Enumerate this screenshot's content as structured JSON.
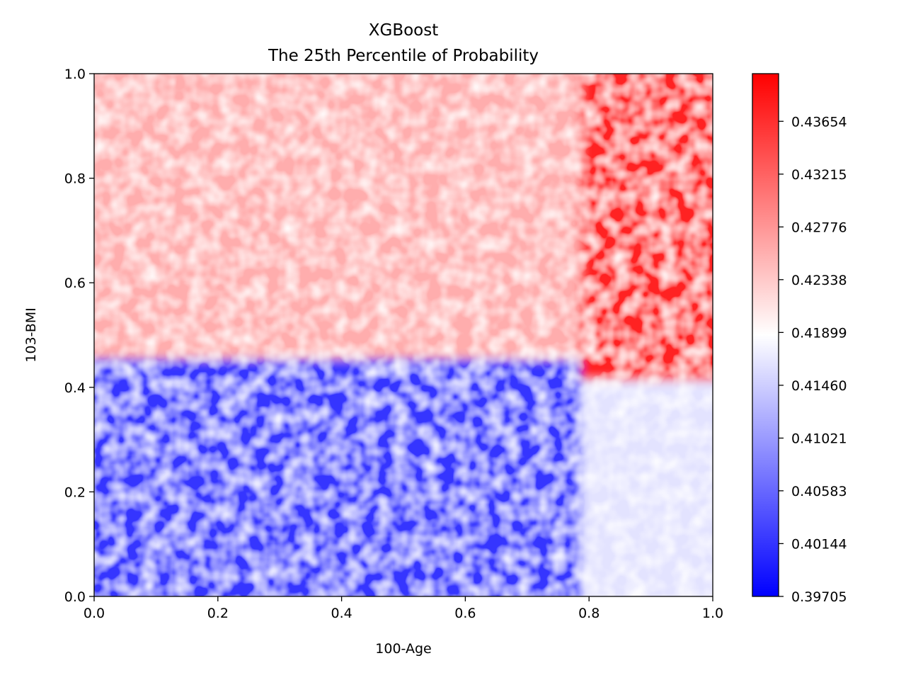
{
  "chart_data": {
    "type": "heatmap",
    "title": "XGBoost",
    "subtitle": "The 25th Percentile of Probability",
    "xlabel": "100-Age",
    "ylabel": "103-BMI",
    "xlim": [
      0.0,
      1.0
    ],
    "ylim": [
      0.0,
      1.0
    ],
    "x_ticks": [
      "0.0",
      "0.2",
      "0.4",
      "0.6",
      "0.8",
      "1.0"
    ],
    "y_ticks": [
      "0.0",
      "0.2",
      "0.4",
      "0.6",
      "0.8",
      "1.0"
    ],
    "colorbar": {
      "min": 0.39705,
      "max": 0.4405,
      "ticks": [
        "0.39705",
        "0.40144",
        "0.40583",
        "0.41021",
        "0.41460",
        "0.41899",
        "0.42338",
        "0.42776",
        "0.43215",
        "0.43654"
      ],
      "colormap": "bwr",
      "colors": [
        "#0000ff",
        "#ffffff",
        "#ff0000"
      ]
    },
    "regions": [
      {
        "x": [
          0.0,
          0.8
        ],
        "y": [
          0.0,
          0.47
        ],
        "value": 0.4015
      },
      {
        "x": [
          0.8,
          1.0
        ],
        "y": [
          0.0,
          0.43
        ],
        "value": 0.4164
      },
      {
        "x": [
          0.0,
          0.8
        ],
        "y": [
          0.47,
          1.0
        ],
        "value": 0.4258
      },
      {
        "x": [
          0.8,
          1.0
        ],
        "y": [
          0.43,
          1.0
        ],
        "value": 0.4378
      }
    ],
    "grid": false
  }
}
